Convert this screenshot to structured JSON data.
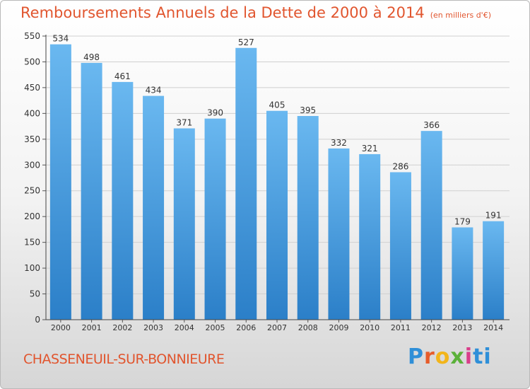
{
  "header": {
    "title": "Remboursements Annuels de la Dette de 2000 à 2014",
    "subtitle": "(en milliers d'€)"
  },
  "footer": {
    "city": "CHASSENEUIL-SUR-BONNIEURE",
    "logo_text": "Proxiti"
  },
  "colors": {
    "title": "#e1552e",
    "bar_top": "#6ab8f0",
    "bar_bottom": "#2b7fc8",
    "gridline": "#d0d0d0"
  },
  "chart_data": {
    "type": "bar",
    "title": "Remboursements Annuels de la Dette de 2000 à 2014",
    "subtitle": "(en milliers d'€)",
    "xlabel": "",
    "ylabel": "",
    "categories": [
      "2000",
      "2001",
      "2002",
      "2003",
      "2004",
      "2005",
      "2006",
      "2007",
      "2008",
      "2009",
      "2010",
      "2011",
      "2012",
      "2013",
      "2014"
    ],
    "values": [
      534,
      498,
      461,
      434,
      371,
      390,
      527,
      405,
      395,
      332,
      321,
      286,
      366,
      179,
      191
    ],
    "data_labels": [
      "534",
      "498",
      "461",
      "434",
      "371",
      "390",
      "527",
      "405",
      "395",
      "332",
      "321",
      "286",
      "366",
      "179",
      "191"
    ],
    "ylim": [
      0,
      550
    ],
    "yticks": [
      0,
      50,
      100,
      150,
      200,
      250,
      300,
      350,
      400,
      450,
      500,
      550
    ],
    "ytick_labels": [
      "0",
      "50",
      "100",
      "150",
      "200",
      "250",
      "300",
      "350",
      "400",
      "450",
      "500",
      "550"
    ],
    "grid": true,
    "legend": "none"
  }
}
